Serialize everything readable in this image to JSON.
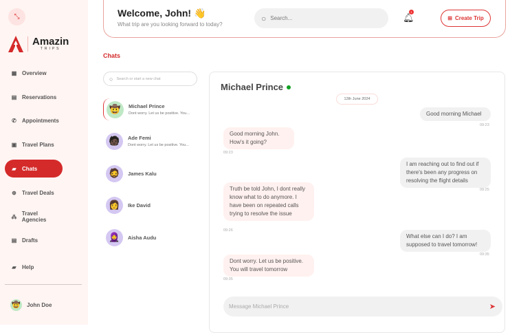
{
  "brand": {
    "name": "Amazin",
    "tagline": "TRIPS",
    "color": "#d42a2a"
  },
  "sidebar": {
    "items": [
      {
        "label": "Overview",
        "icon": "grid-icon"
      },
      {
        "label": "Reservations",
        "icon": "calendar-icon"
      },
      {
        "label": "Appointments",
        "icon": "phone-icon"
      },
      {
        "label": "Travel Plans",
        "icon": "clipboard-icon"
      },
      {
        "label": "Chats",
        "icon": "chat-icon",
        "active": true
      },
      {
        "label": "Travel Deals",
        "icon": "globe-icon"
      },
      {
        "label": "Travel Agencies",
        "icon": "people-icon"
      },
      {
        "label": "Drafts",
        "icon": "document-icon"
      },
      {
        "label": "Help",
        "icon": "help-icon"
      }
    ],
    "user": "John Doe"
  },
  "header": {
    "welcome": "Welcome, John!",
    "emoji": "👋",
    "subtitle": "What trip are you looking forward to today?",
    "search_placeholder": "Search...",
    "notifications": "1",
    "create_trip": "Create Trip"
  },
  "chats": {
    "title": "Chats",
    "search_placeholder": "Search or start a new chat",
    "list": [
      {
        "name": "Michael Prince",
        "preview": "Dont worry. Let us be positive. You...",
        "avatar": "🤠",
        "selected": true
      },
      {
        "name": "Ade Femi",
        "preview": "Dont worry. Let us be positive. You...",
        "avatar": "🧑🏿"
      },
      {
        "name": "James Kalu",
        "preview": "",
        "avatar": "🧔"
      },
      {
        "name": "Ike David",
        "preview": "",
        "avatar": "👩"
      },
      {
        "name": "Aisha Audu",
        "preview": "",
        "avatar": "🧕"
      }
    ]
  },
  "conversation": {
    "name": "Michael Prince",
    "status": "online",
    "date": "12th June 2024",
    "messages": [
      {
        "dir": "out",
        "text": "Good morning Michael",
        "time": "09:23"
      },
      {
        "dir": "in",
        "text": "Good morning John. How's it going?",
        "time": "09:23"
      },
      {
        "dir": "out",
        "text": "I am reaching out to find out if there's been any progress on resolving the flight details",
        "time": "09:25"
      },
      {
        "dir": "in",
        "text": "Truth be told John, I dont really know what to do anymore. I have been on repeated calls trying to resolve the issue",
        "time": "09:26"
      },
      {
        "dir": "out",
        "text": "What else can I do? I am supposed to travel tomorrow!",
        "time": "09:35"
      },
      {
        "dir": "in",
        "text": "Dont worry. Let us be positive. You will travel tomorrow",
        "time": "09:35"
      }
    ],
    "input_placeholder": "Message Michael Prince"
  }
}
